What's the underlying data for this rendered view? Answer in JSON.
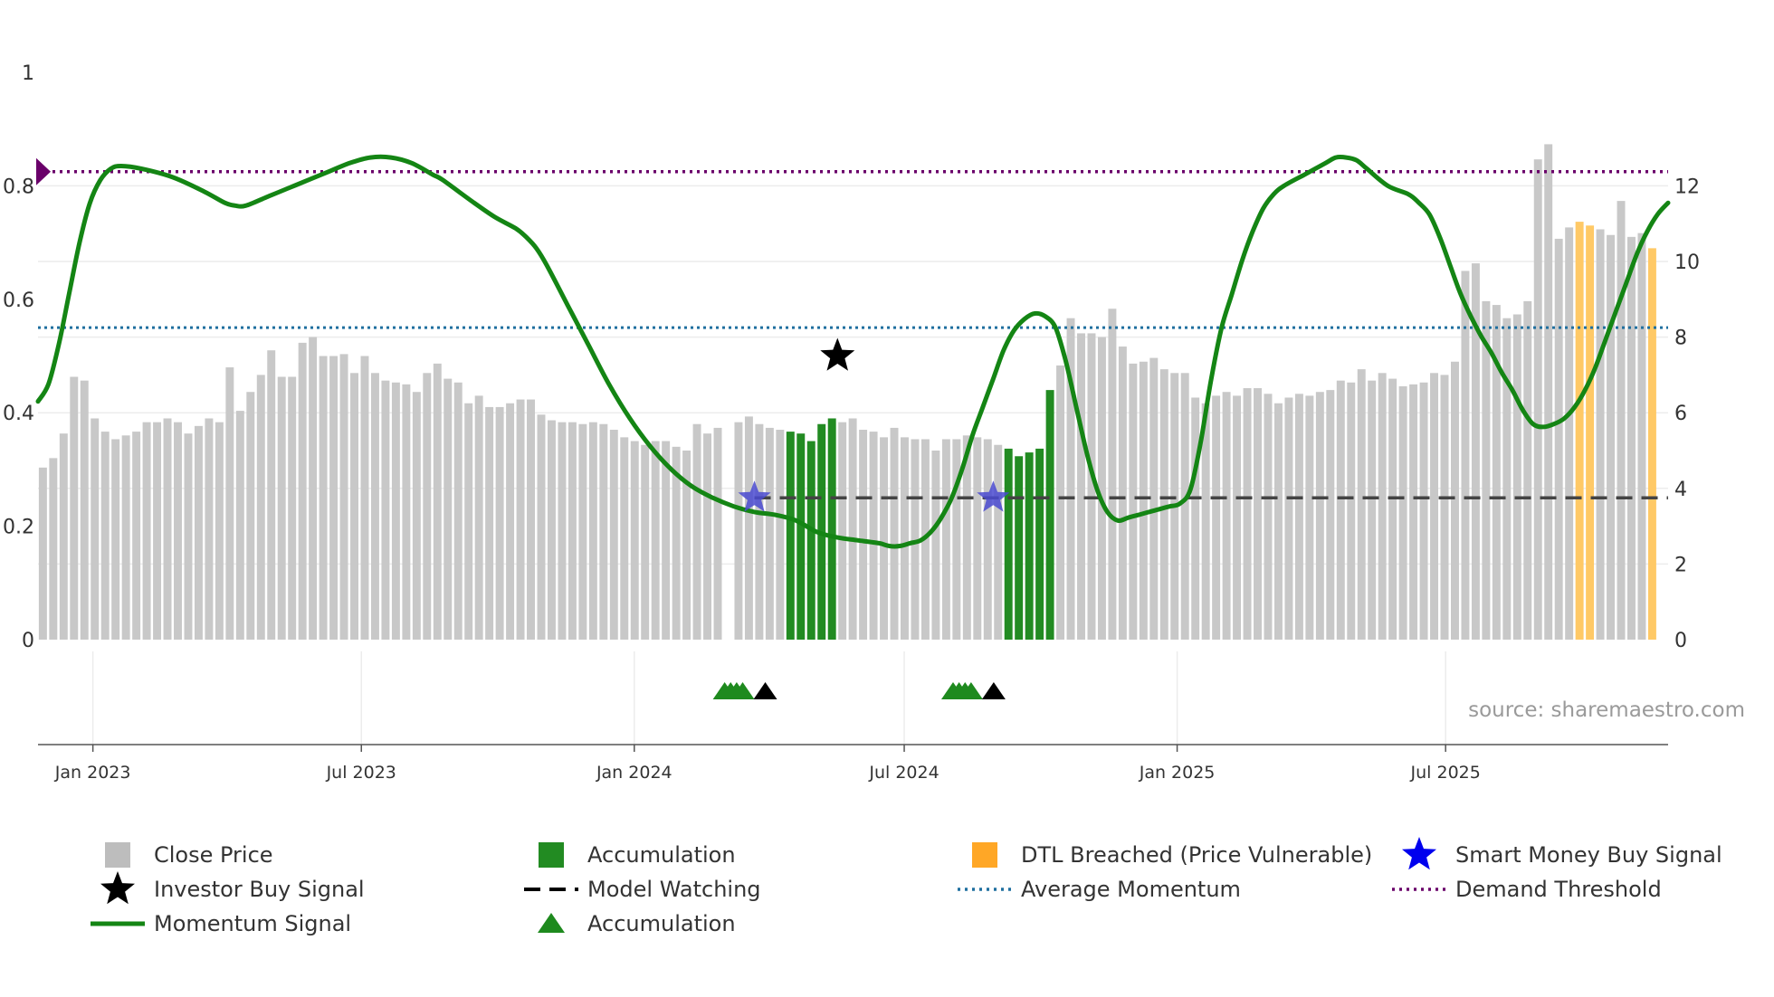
{
  "chart_data": {
    "type": "bar",
    "title": "",
    "watermark": "source: sharemaestro.com",
    "left_axis": {
      "ylim": [
        0,
        1
      ],
      "ticks": [
        0,
        0.2,
        0.4,
        0.6,
        0.8,
        1
      ],
      "tick_labels": [
        "0",
        "0.2",
        "0.4",
        "0.6",
        "0.8",
        "1"
      ]
    },
    "right_axis": {
      "ylim": [
        0,
        15
      ],
      "ticks": [
        0,
        2,
        4,
        6,
        8,
        10,
        12
      ],
      "tick_labels": [
        "0",
        "2",
        "4",
        "6",
        "8",
        "10",
        "12"
      ]
    },
    "x_axis": {
      "start": "2022-11-25",
      "end": "2025-11-28",
      "ticks": [
        {
          "date": "2023-01-01",
          "label": "Jan 2023"
        },
        {
          "date": "2023-07-01",
          "label": "Jul 2023"
        },
        {
          "date": "2024-01-01",
          "label": "Jan 2024"
        },
        {
          "date": "2024-07-01",
          "label": "Jul 2024"
        },
        {
          "date": "2025-01-01",
          "label": "Jan 2025"
        },
        {
          "date": "2025-07-01",
          "label": "Jul 2025"
        }
      ]
    },
    "bars": {
      "start": "2022-11-25",
      "step_days": 7,
      "series_name": "Close Price",
      "values": [
        4.55,
        4.8,
        5.45,
        6.95,
        6.85,
        5.85,
        5.5,
        5.3,
        5.4,
        5.5,
        5.75,
        5.75,
        5.85,
        5.75,
        5.45,
        5.65,
        5.85,
        5.75,
        7.2,
        6.05,
        6.55,
        7.0,
        7.65,
        6.95,
        6.95,
        7.85,
        8.0,
        7.5,
        7.5,
        7.55,
        7.05,
        7.5,
        7.05,
        6.85,
        6.8,
        6.75,
        6.55,
        7.05,
        7.3,
        6.9,
        6.8,
        6.25,
        6.45,
        6.15,
        6.15,
        6.25,
        6.35,
        6.35,
        5.95,
        5.8,
        5.75,
        5.75,
        5.7,
        5.75,
        5.7,
        5.55,
        5.35,
        5.25,
        5.15,
        5.25,
        5.25,
        5.1,
        5.0,
        5.7,
        5.45,
        5.6,
        null,
        5.75,
        5.9,
        5.7,
        5.6,
        5.55,
        5.5,
        5.45,
        5.25,
        5.7,
        5.85,
        5.75,
        5.85,
        5.55,
        5.5,
        5.35,
        5.6,
        5.35,
        5.3,
        5.3,
        5.0,
        5.3,
        5.3,
        5.4,
        5.35,
        5.3,
        5.15,
        5.05,
        4.85,
        4.95,
        5.05,
        6.6,
        7.25,
        8.5,
        8.1,
        8.1,
        8.0,
        8.75,
        7.75,
        7.3,
        7.35,
        7.45,
        7.15,
        7.05,
        7.05,
        6.4,
        6.25,
        6.45,
        6.55,
        6.45,
        6.65,
        6.65,
        6.5,
        6.25,
        6.4,
        6.5,
        6.45,
        6.55,
        6.6,
        6.85,
        6.8,
        7.15,
        6.85,
        7.05,
        6.9,
        6.7,
        6.75,
        6.8,
        7.05,
        7.0,
        7.35,
        9.75,
        9.95,
        8.95,
        8.85,
        8.5,
        8.6,
        8.95,
        12.7,
        13.1,
        10.6,
        10.9,
        11.05,
        10.95,
        10.85,
        10.7,
        11.6,
        10.65,
        10.75,
        10.35
      ],
      "accumulation_range": [
        72,
        76
      ],
      "accumulation_range_2": [
        93,
        97
      ],
      "dtl_breached_indices": [
        148,
        149,
        155
      ]
    },
    "momentum_signal": {
      "name": "Momentum Signal",
      "points": [
        [
          "2022-11-25",
          0.42
        ],
        [
          "2022-12-02",
          0.45
        ],
        [
          "2022-12-09",
          0.52
        ],
        [
          "2022-12-16",
          0.61
        ],
        [
          "2022-12-23",
          0.7
        ],
        [
          "2022-12-30",
          0.77
        ],
        [
          "2023-01-06",
          0.81
        ],
        [
          "2023-01-13",
          0.83
        ],
        [
          "2023-01-20",
          0.835
        ],
        [
          "2023-02-03",
          0.83
        ],
        [
          "2023-02-24",
          0.815
        ],
        [
          "2023-03-17",
          0.79
        ],
        [
          "2023-03-31",
          0.77
        ],
        [
          "2023-04-07",
          0.765
        ],
        [
          "2023-04-14",
          0.765
        ],
        [
          "2023-04-28",
          0.78
        ],
        [
          "2023-05-12",
          0.795
        ],
        [
          "2023-05-26",
          0.81
        ],
        [
          "2023-06-09",
          0.825
        ],
        [
          "2023-06-23",
          0.84
        ],
        [
          "2023-07-07",
          0.85
        ],
        [
          "2023-07-21",
          0.85
        ],
        [
          "2023-08-04",
          0.84
        ],
        [
          "2023-08-18",
          0.82
        ],
        [
          "2023-08-25",
          0.81
        ],
        [
          "2023-09-15",
          0.77
        ],
        [
          "2023-09-29",
          0.745
        ],
        [
          "2023-10-13",
          0.725
        ],
        [
          "2023-10-20",
          0.71
        ],
        [
          "2023-10-27",
          0.69
        ],
        [
          "2023-11-03",
          0.66
        ],
        [
          "2023-11-17",
          0.59
        ],
        [
          "2023-12-01",
          0.52
        ],
        [
          "2023-12-15",
          0.45
        ],
        [
          "2023-12-29",
          0.39
        ],
        [
          "2024-01-12",
          0.34
        ],
        [
          "2024-01-26",
          0.3
        ],
        [
          "2024-02-09",
          0.27
        ],
        [
          "2024-02-23",
          0.25
        ],
        [
          "2024-03-08",
          0.235
        ],
        [
          "2024-03-22",
          0.225
        ],
        [
          "2024-04-05",
          0.22
        ],
        [
          "2024-04-19",
          0.21
        ],
        [
          "2024-05-03",
          0.19
        ],
        [
          "2024-05-17",
          0.18
        ],
        [
          "2024-05-31",
          0.175
        ],
        [
          "2024-06-14",
          0.17
        ],
        [
          "2024-06-21",
          0.165
        ],
        [
          "2024-06-28",
          0.165
        ],
        [
          "2024-07-05",
          0.17
        ],
        [
          "2024-07-12",
          0.175
        ],
        [
          "2024-07-19",
          0.19
        ],
        [
          "2024-07-26",
          0.215
        ],
        [
          "2024-08-02",
          0.25
        ],
        [
          "2024-08-09",
          0.3
        ],
        [
          "2024-08-16",
          0.36
        ],
        [
          "2024-08-23",
          0.41
        ],
        [
          "2024-08-30",
          0.46
        ],
        [
          "2024-09-06",
          0.51
        ],
        [
          "2024-09-13",
          0.545
        ],
        [
          "2024-09-20",
          0.565
        ],
        [
          "2024-09-27",
          0.575
        ],
        [
          "2024-10-04",
          0.57
        ],
        [
          "2024-10-11",
          0.55
        ],
        [
          "2024-10-18",
          0.49
        ],
        [
          "2024-10-25",
          0.41
        ],
        [
          "2024-11-01",
          0.33
        ],
        [
          "2024-11-08",
          0.265
        ],
        [
          "2024-11-15",
          0.225
        ],
        [
          "2024-11-22",
          0.21
        ],
        [
          "2024-11-29",
          0.215
        ],
        [
          "2024-12-06",
          0.22
        ],
        [
          "2024-12-13",
          0.225
        ],
        [
          "2024-12-20",
          0.23
        ],
        [
          "2024-12-27",
          0.235
        ],
        [
          "2025-01-03",
          0.24
        ],
        [
          "2025-01-10",
          0.265
        ],
        [
          "2025-01-17",
          0.35
        ],
        [
          "2025-01-24",
          0.46
        ],
        [
          "2025-01-31",
          0.55
        ],
        [
          "2025-02-07",
          0.61
        ],
        [
          "2025-02-14",
          0.67
        ],
        [
          "2025-02-21",
          0.72
        ],
        [
          "2025-02-28",
          0.76
        ],
        [
          "2025-03-07",
          0.785
        ],
        [
          "2025-03-14",
          0.8
        ],
        [
          "2025-03-28",
          0.82
        ],
        [
          "2025-04-11",
          0.84
        ],
        [
          "2025-04-18",
          0.85
        ],
        [
          "2025-04-25",
          0.85
        ],
        [
          "2025-05-02",
          0.845
        ],
        [
          "2025-05-09",
          0.83
        ],
        [
          "2025-05-23",
          0.8
        ],
        [
          "2025-06-06",
          0.785
        ],
        [
          "2025-06-13",
          0.77
        ],
        [
          "2025-06-20",
          0.75
        ],
        [
          "2025-06-27",
          0.71
        ],
        [
          "2025-07-04",
          0.66
        ],
        [
          "2025-07-11",
          0.61
        ],
        [
          "2025-07-18",
          0.57
        ],
        [
          "2025-07-25",
          0.535
        ],
        [
          "2025-08-01",
          0.505
        ],
        [
          "2025-08-08",
          0.47
        ],
        [
          "2025-08-15",
          0.44
        ],
        [
          "2025-08-22",
          0.405
        ],
        [
          "2025-08-29",
          0.38
        ],
        [
          "2025-09-05",
          0.375
        ],
        [
          "2025-09-12",
          0.38
        ],
        [
          "2025-09-19",
          0.39
        ],
        [
          "2025-09-26",
          0.41
        ],
        [
          "2025-10-03",
          0.44
        ],
        [
          "2025-10-10",
          0.48
        ],
        [
          "2025-10-17",
          0.53
        ],
        [
          "2025-10-24",
          0.58
        ],
        [
          "2025-10-31",
          0.63
        ],
        [
          "2025-11-07",
          0.68
        ],
        [
          "2025-11-14",
          0.72
        ],
        [
          "2025-11-21",
          0.75
        ],
        [
          "2025-11-28",
          0.77
        ]
      ]
    },
    "average_momentum": 0.55,
    "demand_threshold": 0.825,
    "model_watching_level": 0.25,
    "annotations": {
      "investor_buy_signal": {
        "date": "2024-05-17",
        "value": 0.5
      },
      "smart_money_buy_signals": [
        {
          "date": "2024-03-22",
          "value": 0.25
        },
        {
          "date": "2024-08-30",
          "value": 0.25
        }
      ],
      "accumulation_triangles": [
        {
          "start": "2024-02-23",
          "end": "2024-03-22"
        },
        {
          "start": "2024-07-26",
          "end": "2024-08-23"
        }
      ],
      "demand_marker_value": 0.825
    },
    "legend": [
      {
        "key": "close_price",
        "label": "Close Price",
        "color": "#bdbdbd"
      },
      {
        "key": "accumulation_bar",
        "label": "Accumulation",
        "color": "#228b22"
      },
      {
        "key": "dtl_breached",
        "label": "DTL Breached (Price Vulnerable)",
        "color": "#ffa726"
      },
      {
        "key": "smart_money",
        "label": "Smart Money Buy Signal",
        "color": "#0000ee"
      },
      {
        "key": "investor_buy",
        "label": "Investor Buy Signal",
        "color": "#000000"
      },
      {
        "key": "model_watching",
        "label": "Model Watching",
        "color": "#000000"
      },
      {
        "key": "average_momentum",
        "label": "Average Momentum",
        "color": "#1f6f9f"
      },
      {
        "key": "demand_threshold",
        "label": "Demand Threshold",
        "color": "#6a006a"
      },
      {
        "key": "momentum_signal",
        "label": "Momentum Signal",
        "color": "#138013"
      },
      {
        "key": "accumulation_triangle",
        "label": "Accumulation",
        "color": "#228b22"
      }
    ],
    "colors": {
      "close_bar": "#c8c8c8",
      "accum_bar": "#228b22",
      "dtl_bar": "#ffc966",
      "momentum": "#148514",
      "avg_momentum": "#1f6f9f",
      "demand": "#6a006a",
      "smart_star": "#4a4ad0"
    }
  }
}
